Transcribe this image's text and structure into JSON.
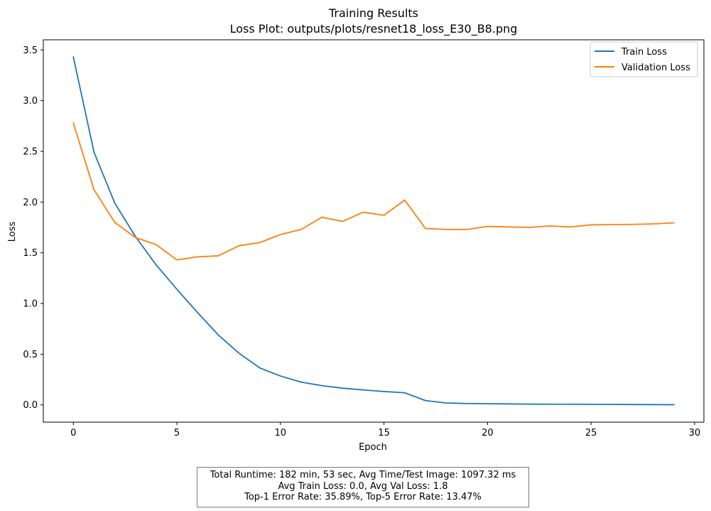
{
  "chart_data": {
    "type": "line",
    "title": "Training Results",
    "subtitle": "Loss Plot: outputs/plots/resnet18_loss_E30_B8.png",
    "xlabel": "Epoch",
    "ylabel": "Loss",
    "xlim": [
      -1.45,
      30.45
    ],
    "ylim": [
      -0.17,
      3.6
    ],
    "xticks": [
      0,
      5,
      10,
      15,
      20,
      25,
      30
    ],
    "xtick_labels": [
      "0",
      "5",
      "10",
      "15",
      "20",
      "25",
      "30"
    ],
    "yticks": [
      0.0,
      0.5,
      1.0,
      1.5,
      2.0,
      2.5,
      3.0,
      3.5
    ],
    "ytick_labels": [
      "0.0",
      "0.5",
      "1.0",
      "1.5",
      "2.0",
      "2.5",
      "3.0",
      "3.5"
    ],
    "grid": false,
    "legend_position": "top-right",
    "x": [
      0,
      1,
      2,
      3,
      4,
      5,
      6,
      7,
      8,
      9,
      10,
      11,
      12,
      13,
      14,
      15,
      16,
      17,
      18,
      19,
      20,
      21,
      22,
      23,
      24,
      25,
      26,
      27,
      28,
      29
    ],
    "series": [
      {
        "name": "Train Loss",
        "color": "#1f77b4",
        "values": [
          3.43,
          2.49,
          1.99,
          1.66,
          1.38,
          1.14,
          0.91,
          0.69,
          0.51,
          0.365,
          0.285,
          0.225,
          0.19,
          0.165,
          0.148,
          0.132,
          0.12,
          0.043,
          0.019,
          0.014,
          0.012,
          0.01,
          0.008,
          0.007,
          0.007,
          0.006,
          0.005,
          0.004,
          0.003,
          0.002
        ]
      },
      {
        "name": "Validation Loss",
        "color": "#ff7f0e",
        "values": [
          2.78,
          2.12,
          1.8,
          1.65,
          1.58,
          1.43,
          1.46,
          1.47,
          1.57,
          1.6,
          1.68,
          1.73,
          1.85,
          1.81,
          1.9,
          1.87,
          2.02,
          1.74,
          1.73,
          1.73,
          1.76,
          1.755,
          1.75,
          1.765,
          1.755,
          1.775,
          1.778,
          1.78,
          1.785,
          1.795
        ]
      }
    ]
  },
  "footer": {
    "line1": "Total Runtime: 182 min, 53 sec, Avg Time/Test Image: 1097.32 ms",
    "line2": "Avg Train Loss: 0.0, Avg Val Loss: 1.8",
    "line3": "Top-1 Error Rate: 35.89%, Top-5 Error Rate: 13.47%"
  }
}
